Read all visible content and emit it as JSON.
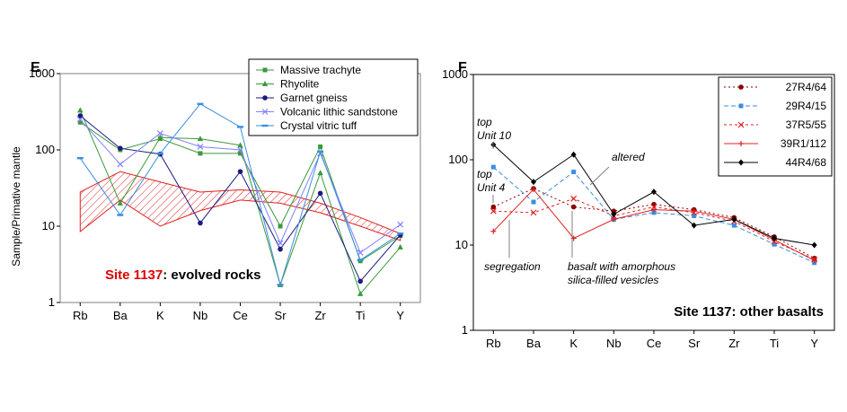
{
  "panels": [
    {
      "panel_label": "E",
      "site": "Site 1137",
      "site_suffix": ": evolved rocks",
      "ylabel": "Sample/Primative mantle",
      "yticks": [
        "1",
        "10",
        "100",
        "1000"
      ]
    },
    {
      "panel_label": "F",
      "site_full": "Site 1137: other basalts",
      "yticks": [
        "1",
        "10",
        "100",
        "1000"
      ],
      "annotations": {
        "top_unit10_line1": "top",
        "top_unit10_line2": "Unit 10",
        "top_unit4_line1": "top",
        "top_unit4_line2": "Unit 4",
        "altered": "altered",
        "segregation": "segregation",
        "basalt_line1": "basalt with amorphous",
        "basalt_line2": "silica-filled vesicles"
      }
    }
  ],
  "colors": {
    "green": "#3a9a3a",
    "dark_blue": "#1a1a80",
    "lavender": "#8080ff",
    "light_blue": "#3a8ee0",
    "red": "#e02020",
    "dark_red": "#8b0000",
    "site_red": "#e00000"
  },
  "chart_data": [
    {
      "type": "line",
      "yscale": "log",
      "ylim": [
        1,
        1000
      ],
      "categories": [
        "Rb",
        "Ba",
        "K",
        "Nb",
        "Ce",
        "Sr",
        "Zr",
        "Ti",
        "Y"
      ],
      "ylabel": "Sample/Primative mantle",
      "legend_position": "top-right",
      "series": [
        {
          "name": "Massive trachyte",
          "color": "#3a9a3a",
          "marker": "square",
          "values": [
            230,
            100,
            140,
            90,
            90,
            10,
            110,
            3.5,
            7.5
          ]
        },
        {
          "name": "Rhyolite",
          "color": "#3a9a3a",
          "marker": "triangle",
          "values": [
            330,
            20,
            145,
            140,
            115,
            1.7,
            50,
            1.3,
            5.3
          ]
        },
        {
          "name": "Garnet gneiss",
          "color": "#1a1a80",
          "marker": "circle",
          "values": [
            280,
            105,
            88,
            11,
            52,
            5,
            27,
            1.9,
            7.7
          ]
        },
        {
          "name": "Volcanic lithic sandstone",
          "color": "#8080ff",
          "marker": "x",
          "values": [
            250,
            65,
            165,
            110,
            100,
            6,
            90,
            4.5,
            10.5
          ]
        },
        {
          "name": "Crystal vitric tuff",
          "color": "#3a8ee0",
          "marker": "dash",
          "values": [
            78,
            14,
            90,
            400,
            200,
            1.7,
            95,
            3.6,
            8
          ]
        }
      ],
      "band": {
        "color": "#e02020",
        "upper": [
          28,
          52,
          38,
          28,
          30,
          28,
          20,
          13,
          8
        ],
        "lower": [
          8.5,
          22,
          10,
          16,
          22,
          20,
          15,
          10,
          6.5
        ]
      }
    },
    {
      "type": "line",
      "yscale": "log",
      "ylim": [
        1,
        1000
      ],
      "categories": [
        "Rb",
        "Ba",
        "K",
        "Nb",
        "Ce",
        "Sr",
        "Zr",
        "Ti",
        "Y"
      ],
      "legend_position": "top-right",
      "series": [
        {
          "name": "27R4/64",
          "color": "#8b0000",
          "marker": "circle",
          "dash": "2,3",
          "values": [
            28,
            46,
            28,
            25,
            30,
            26,
            21,
            12.5,
            7
          ]
        },
        {
          "name": "29R4/15",
          "color": "#3a8ee0",
          "marker": "square",
          "dash": "5,3",
          "values": [
            82,
            32,
            72,
            20,
            24,
            22,
            17,
            10.2,
            6.2
          ]
        },
        {
          "name": "37R5/55",
          "color": "#e02020",
          "marker": "x",
          "dash": "3,3",
          "values": [
            25,
            24,
            35,
            22,
            28,
            24,
            19,
            11,
            6.8
          ]
        },
        {
          "name": "39R1/112",
          "color": "#e02020",
          "marker": "plus",
          "dash": "",
          "values": [
            14.5,
            45,
            12,
            20,
            26,
            25,
            20,
            11.5,
            6.6
          ]
        },
        {
          "name": "44R4/68",
          "color": "#000000",
          "marker": "diamond",
          "dash": "",
          "values": [
            150,
            55,
            115,
            23,
            42,
            17,
            20,
            12,
            10
          ]
        }
      ]
    }
  ]
}
